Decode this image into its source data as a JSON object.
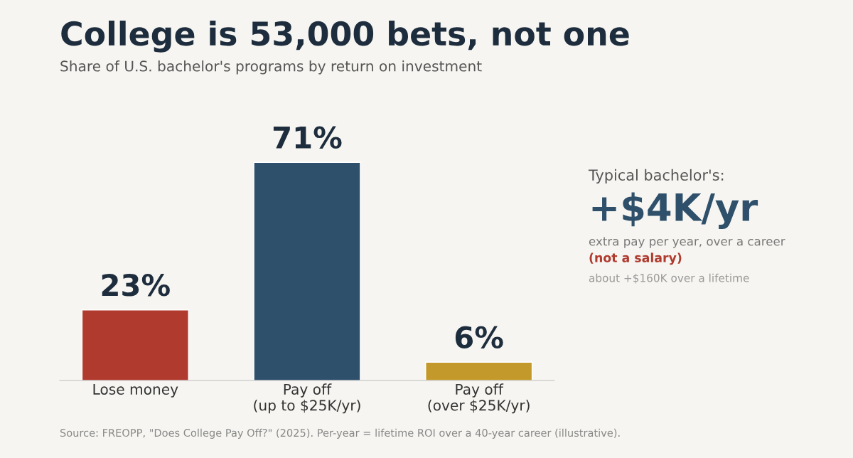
{
  "chart_data": {
    "type": "bar",
    "title": "College is 53,000 bets, not one",
    "subtitle": "Share of U.S. bachelor's programs by return on investment",
    "categories": [
      "Lose money",
      "Pay off\n(up to $25K/yr)",
      "Pay off\n(over $25K/yr)"
    ],
    "values": [
      23,
      71,
      6
    ],
    "colors": [
      "#b03a2e",
      "#2f506b",
      "#c4992b"
    ],
    "value_labels": [
      "23%",
      "71%",
      "6%"
    ],
    "grid": false,
    "legend": false,
    "annotations": [
      "Typical bachelor's:",
      "+$4K/yr",
      "extra pay per year, over a career",
      "(not a salary)",
      "about +$160K over a lifetime",
      "Source: FREOPP, \"Does College Pay Off?\" (2025). Per-year = lifetime ROI over a 40-year career (illustrative)."
    ]
  }
}
